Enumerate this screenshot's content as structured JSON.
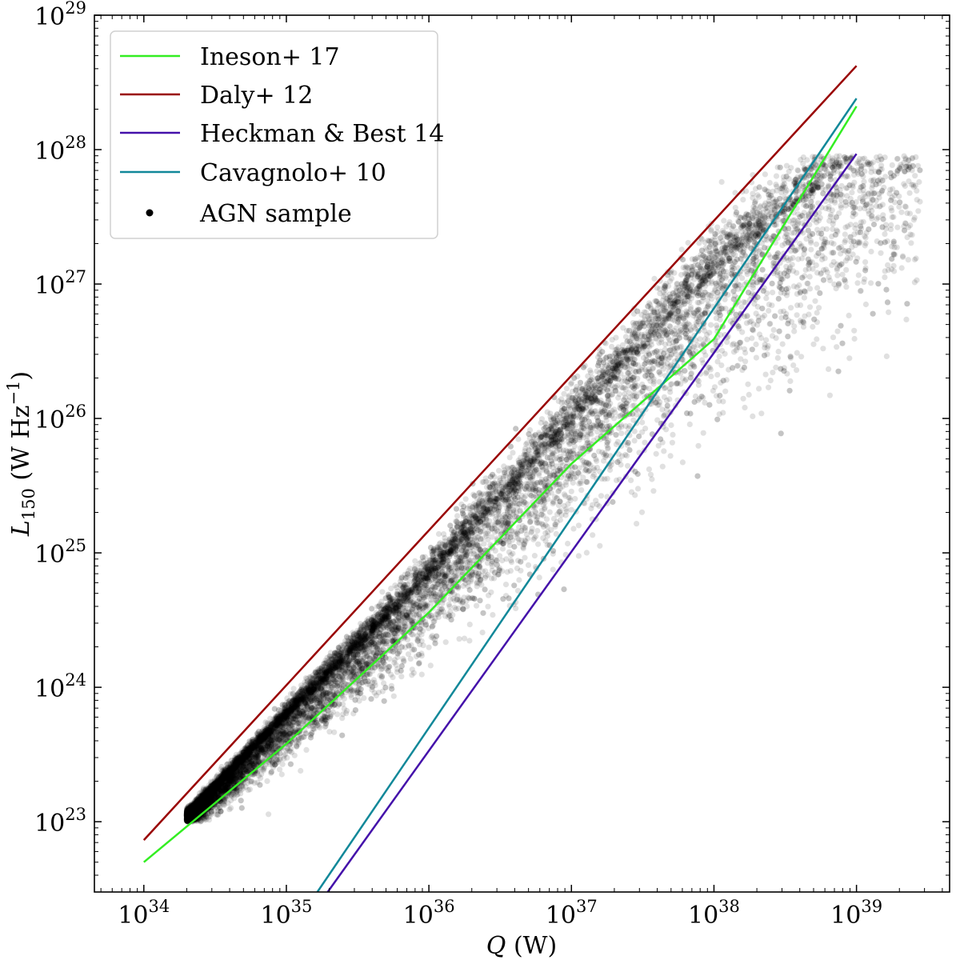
{
  "chart_data": {
    "type": "scatter",
    "title": "",
    "xlabel_var": "Q",
    "xlabel_unit": " (W)",
    "ylabel_var": "L",
    "ylabel_sub": "150",
    "ylabel_unit": " (W Hz",
    "ylabel_exp": "−1",
    "ylabel_close": ")",
    "x_scale": "log",
    "y_scale": "log",
    "xlim": [
      4.5e+33,
      4.5e+39
    ],
    "ylim": [
      3e+22,
      1e+29
    ],
    "x_tick_values": [
      1e+34,
      1e+35,
      1e+36,
      1e+37,
      1e+38,
      1e+39
    ],
    "x_tick_labels": [
      {
        "base": "10",
        "exp": "34"
      },
      {
        "base": "10",
        "exp": "35"
      },
      {
        "base": "10",
        "exp": "36"
      },
      {
        "base": "10",
        "exp": "37"
      },
      {
        "base": "10",
        "exp": "38"
      },
      {
        "base": "10",
        "exp": "39"
      }
    ],
    "y_tick_values": [
      1e+23,
      1e+24,
      1e+25,
      1e+26,
      1e+27,
      1e+28,
      1e+29
    ],
    "y_tick_labels": [
      {
        "base": "10",
        "exp": "23"
      },
      {
        "base": "10",
        "exp": "24"
      },
      {
        "base": "10",
        "exp": "25"
      },
      {
        "base": "10",
        "exp": "26"
      },
      {
        "base": "10",
        "exp": "27"
      },
      {
        "base": "10",
        "exp": "28"
      },
      {
        "base": "10",
        "exp": "29"
      }
    ],
    "legend_position": "top-left",
    "grid": false,
    "series": [
      {
        "name": "Ineson+ 17",
        "kind": "line",
        "color": "#33ee22",
        "points": [
          [
            1e+34,
            5e+22
          ],
          [
            1e+35,
            3.8e+23
          ],
          [
            1e+36,
            3.6e+24
          ],
          [
            1e+37,
            4.6e+25
          ],
          [
            1e+38,
            3.9e+26
          ],
          [
            1e+39,
            2.1e+28
          ]
        ]
      },
      {
        "name": "Daly+ 12",
        "kind": "line",
        "color": "#990000",
        "points": [
          [
            1e+34,
            7.3e+22
          ],
          [
            1e+39,
            4.2e+28
          ]
        ]
      },
      {
        "name": "Heckman & Best 14",
        "kind": "line",
        "color": "#4411aa",
        "points": [
          [
            1.95e+35,
            3e+22
          ],
          [
            1e+39,
            9.3e+27
          ]
        ]
      },
      {
        "name": "Cavagnolo+ 10",
        "kind": "line",
        "color": "#118899",
        "points": [
          [
            1.65e+35,
            3e+22
          ],
          [
            1e+39,
            2.4e+28
          ]
        ]
      },
      {
        "name": "AGN sample",
        "kind": "scatter",
        "color": "#000000",
        "point_count": 14000,
        "q_range": [
          2e+34,
          2.8e+39
        ],
        "l_range": [
          1e+23,
          9e+27
        ],
        "ridge_points": [
          [
            2e+34,
            1.1e+23
          ],
          [
            1e+35,
            6e+23
          ],
          [
            1e+36,
            6.5e+24
          ],
          [
            1e+37,
            9e+25
          ],
          [
            1e+38,
            1.2e+27
          ],
          [
            1e+39,
            9e+27
          ]
        ]
      }
    ]
  }
}
